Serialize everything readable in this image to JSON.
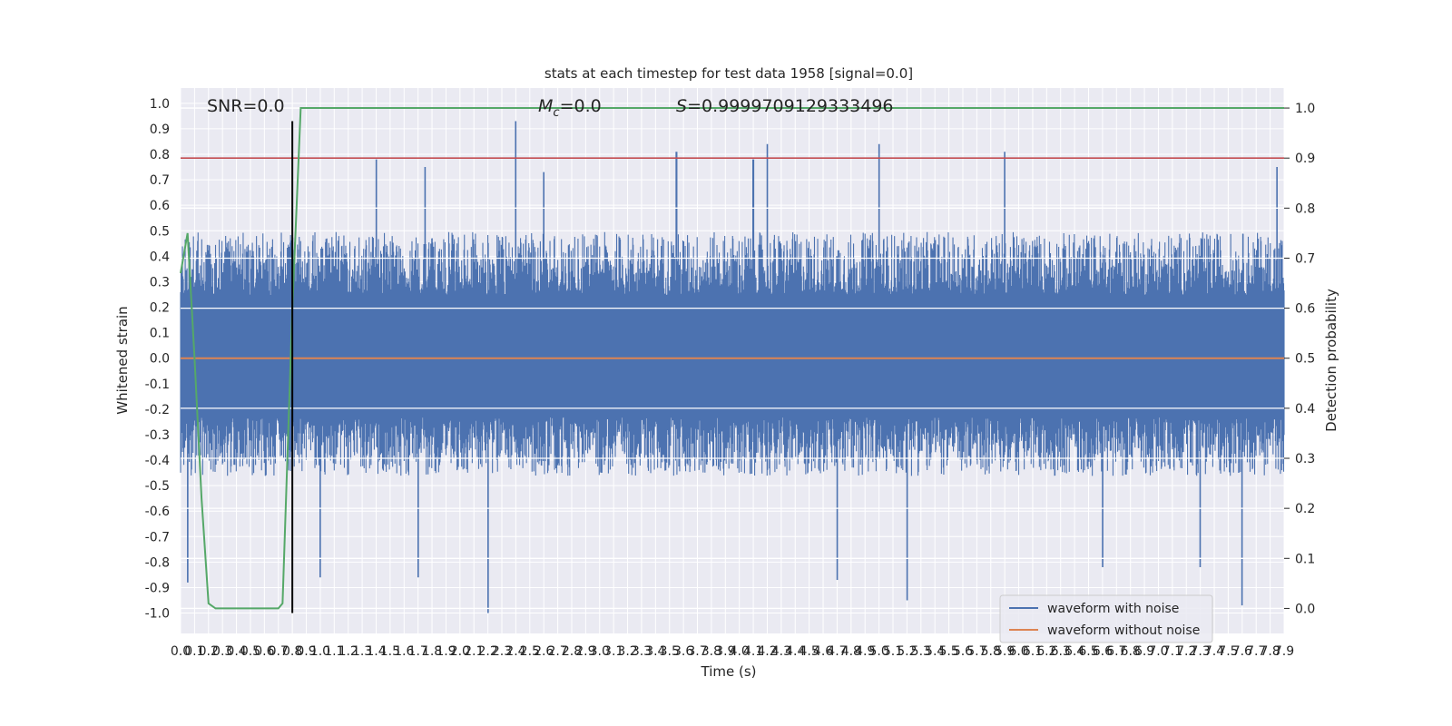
{
  "chart_data": {
    "type": "line",
    "title": "stats at each timestep for test data 1958 [signal=0.0]",
    "xlabel": "Time (s)",
    "ylabel": "Whitened strain",
    "y2label": "Detection probability",
    "xlim": [
      0.0,
      7.9
    ],
    "ylim": [
      -1.08,
      1.06
    ],
    "y2lim": [
      -0.05,
      1.04
    ],
    "x_ticks": [
      "0.0",
      "0.1",
      "0.2",
      "0.3",
      "0.4",
      "0.5",
      "0.6",
      "0.7",
      "0.8",
      "0.9",
      "1.0",
      "1.1",
      "1.2",
      "1.3",
      "1.4",
      "1.5",
      "1.6",
      "1.7",
      "1.8",
      "1.9",
      "2.0",
      "2.1",
      "2.2",
      "2.3",
      "2.4",
      "2.5",
      "2.6",
      "2.7",
      "2.8",
      "2.9",
      "3.0",
      "3.1",
      "3.2",
      "3.3",
      "3.4",
      "3.5",
      "3.6",
      "3.7",
      "3.8",
      "3.9",
      "4.0",
      "4.1",
      "4.2",
      "4.3",
      "4.4",
      "4.5",
      "4.6",
      "4.7",
      "4.8",
      "4.9",
      "5.0",
      "5.1",
      "5.2",
      "5.3",
      "5.4",
      "5.5",
      "5.6",
      "5.7",
      "5.8",
      "5.9",
      "6.0",
      "6.1",
      "6.2",
      "6.3",
      "6.4",
      "6.5",
      "6.6",
      "6.7",
      "6.8",
      "6.9",
      "7.0",
      "7.1",
      "7.2",
      "7.3",
      "7.4",
      "7.5",
      "7.6",
      "7.7",
      "7.8",
      "7.9"
    ],
    "y_ticks": [
      "1.0",
      "0.9",
      "0.8",
      "0.7",
      "0.6",
      "0.5",
      "0.4",
      "0.3",
      "0.2",
      "0.1",
      "0.0",
      "-0.1",
      "-0.2",
      "-0.3",
      "-0.4",
      "-0.5",
      "-0.6",
      "-0.7",
      "-0.8",
      "-0.9",
      "-1.0"
    ],
    "y2_ticks": [
      "1.0",
      "0.9",
      "0.8",
      "0.7",
      "0.6",
      "0.5",
      "0.4",
      "0.3",
      "0.2",
      "0.1",
      "0.0"
    ],
    "annotations": {
      "snr": "SNR=0.0",
      "mc_symbol": "M",
      "mc_sub": "c",
      "mc_value": "=0.0",
      "s_symbol": "S",
      "s_value": "=0.9999709129333496"
    },
    "legend": {
      "placement": "bottom-right",
      "entries": [
        "waveform with noise",
        "waveform without noise"
      ]
    },
    "series": [
      {
        "name": "waveform with noise",
        "color": "#4c72b0",
        "description_kind": "dense noise",
        "x_start": 0.0,
        "x_end": 7.9,
        "typical_envelope": [
          -0.42,
          0.45
        ],
        "peaks": [
          {
            "x": 2.4,
            "y": 0.93
          },
          {
            "x": 1.4,
            "y": 0.78
          },
          {
            "x": 4.2,
            "y": 0.84
          },
          {
            "x": 4.1,
            "y": 0.78
          },
          {
            "x": 5.0,
            "y": 0.84
          },
          {
            "x": 5.9,
            "y": 0.81
          },
          {
            "x": 3.55,
            "y": 0.81
          },
          {
            "x": 7.85,
            "y": 0.75
          },
          {
            "x": 1.75,
            "y": 0.75
          },
          {
            "x": 2.6,
            "y": 0.73
          }
        ],
        "troughs": [
          {
            "x": 2.2,
            "y": -1.0
          },
          {
            "x": 5.2,
            "y": -0.95
          },
          {
            "x": 7.6,
            "y": -0.97
          },
          {
            "x": 0.05,
            "y": -0.88
          },
          {
            "x": 1.0,
            "y": -0.86
          },
          {
            "x": 1.7,
            "y": -0.86
          },
          {
            "x": 4.7,
            "y": -0.87
          },
          {
            "x": 6.6,
            "y": -0.82
          },
          {
            "x": 7.3,
            "y": -0.82
          }
        ]
      },
      {
        "name": "waveform without noise",
        "color": "#dd8452",
        "x": [
          0.0,
          7.9
        ],
        "y": [
          0.0,
          0.0
        ]
      },
      {
        "name": "detection probability",
        "color": "#55a868",
        "axis": "right",
        "x": [
          0.0,
          0.05,
          0.1,
          0.15,
          0.2,
          0.25,
          0.3,
          0.4,
          0.5,
          0.6,
          0.7,
          0.73,
          0.8,
          0.86,
          7.9
        ],
        "y": [
          0.67,
          0.75,
          0.5,
          0.22,
          0.01,
          0.0,
          0.0,
          0.0,
          0.0,
          0.0,
          0.0,
          0.01,
          0.6,
          1.0,
          1.0
        ]
      }
    ],
    "threshold": {
      "axis": "right",
      "y": 0.9,
      "color": "#c44e52"
    },
    "marker_line": {
      "x": 0.8,
      "y_from": -1.0,
      "y_to": 0.93,
      "color": "#000000"
    },
    "grid": true
  }
}
